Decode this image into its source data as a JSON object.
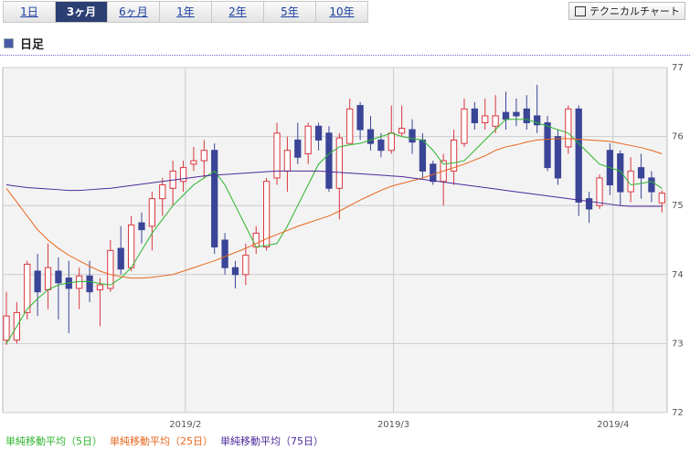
{
  "ui": {
    "tabs": [
      "1日",
      "3ヶ月",
      "6ヶ月",
      "1年",
      "2年",
      "5年",
      "10年"
    ],
    "selected_tab": 1,
    "button": "テクニカルチャート",
    "header": "日足"
  },
  "chart_data": {
    "type": "candlestick",
    "xlim": [
      -0.35,
      63.5
    ],
    "xticks": [
      {
        "value": 17.2,
        "label": "2019/2"
      },
      {
        "value": 37.2,
        "label": "2019/3"
      },
      {
        "value": 58.3,
        "label": "2019/4"
      }
    ],
    "ylim": [
      72,
      77
    ],
    "yticks": [
      72,
      73,
      74,
      75,
      76,
      77
    ],
    "grid": true,
    "up_color": "#d9363e",
    "down_color": "#3b4597",
    "open": [
      73.05,
      73.05,
      73.45,
      74.05,
      73.78,
      74.05,
      73.95,
      73.8,
      73.98,
      73.78,
      73.8,
      74.38,
      74.1,
      74.75,
      74.7,
      75.1,
      75.25,
      75.35,
      75.6,
      75.65,
      75.8,
      74.5,
      74.1,
      74.0,
      74.4,
      74.4,
      75.4,
      75.5,
      75.95,
      75.75,
      76.15,
      76.05,
      75.25,
      75.9,
      76.45,
      76.1,
      75.95,
      75.8,
      76.05,
      76.1,
      75.95,
      75.6,
      75.35,
      75.5,
      75.9,
      76.4,
      76.2,
      76.15,
      76.35,
      76.35,
      76.4,
      76.3,
      76.2,
      76.0,
      75.85,
      76.4,
      75.1,
      75.0,
      75.8,
      75.75,
      75.2,
      75.55,
      75.4,
      75.04
    ],
    "high": [
      73.75,
      73.6,
      74.2,
      74.3,
      74.45,
      74.25,
      74.2,
      74.1,
      74.2,
      73.95,
      74.5,
      74.7,
      74.85,
      74.9,
      75.2,
      75.4,
      75.65,
      75.65,
      75.85,
      75.95,
      75.9,
      74.6,
      74.2,
      74.45,
      74.7,
      75.4,
      76.2,
      76.0,
      76.2,
      76.2,
      76.2,
      76.15,
      76.05,
      76.55,
      76.5,
      76.3,
      76.05,
      76.45,
      76.45,
      76.25,
      76.05,
      75.65,
      75.75,
      76.1,
      76.55,
      76.5,
      76.55,
      76.6,
      76.65,
      76.55,
      76.6,
      76.75,
      76.3,
      76.1,
      76.45,
      76.45,
      75.2,
      75.45,
      75.9,
      75.8,
      75.7,
      75.75,
      75.5,
      75.22
    ],
    "low": [
      72.98,
      73.0,
      73.35,
      73.4,
      73.5,
      73.35,
      73.15,
      73.5,
      73.6,
      73.25,
      73.75,
      74.0,
      74.05,
      74.45,
      74.35,
      74.85,
      75.0,
      75.2,
      75.5,
      75.4,
      74.3,
      74.0,
      73.8,
      73.85,
      74.3,
      74.35,
      75.3,
      75.2,
      75.6,
      75.6,
      75.8,
      75.2,
      74.8,
      75.9,
      75.95,
      75.8,
      75.7,
      75.75,
      76.0,
      75.75,
      75.4,
      75.3,
      75.0,
      75.3,
      75.85,
      76.1,
      76.1,
      76.05,
      76.1,
      76.15,
      76.1,
      76.05,
      75.5,
      75.3,
      75.75,
      74.85,
      74.75,
      74.95,
      75.15,
      75.0,
      75.05,
      75.1,
      75.05,
      74.9
    ],
    "close": [
      73.4,
      73.45,
      74.15,
      73.75,
      74.1,
      73.88,
      73.8,
      73.98,
      73.75,
      73.85,
      74.35,
      74.08,
      74.72,
      74.65,
      75.1,
      75.3,
      75.5,
      75.55,
      75.65,
      75.8,
      74.4,
      74.1,
      74.0,
      74.28,
      74.6,
      75.35,
      76.05,
      75.8,
      75.7,
      76.15,
      75.95,
      75.25,
      75.98,
      76.4,
      76.1,
      75.9,
      75.8,
      76.05,
      76.12,
      75.92,
      75.5,
      75.35,
      75.65,
      75.95,
      76.4,
      76.2,
      76.3,
      76.3,
      76.25,
      76.3,
      76.2,
      76.17,
      75.55,
      75.4,
      76.4,
      75.05,
      74.95,
      75.4,
      75.3,
      75.2,
      75.5,
      75.4,
      75.2,
      75.18
    ],
    "series": [
      {
        "name": "単純移動平均（5日）",
        "color": "#2db52d",
        "values": [
          73.0,
          73.25,
          73.5,
          73.65,
          73.78,
          73.85,
          73.88,
          73.9,
          73.9,
          73.87,
          73.85,
          73.95,
          74.1,
          74.35,
          74.6,
          74.8,
          75.0,
          75.15,
          75.3,
          75.4,
          75.5,
          75.3,
          75.0,
          74.7,
          74.4,
          74.42,
          74.45,
          74.7,
          75.0,
          75.3,
          75.6,
          75.75,
          75.85,
          75.88,
          75.9,
          75.95,
          76.0,
          76.05,
          76.0,
          75.97,
          75.95,
          75.8,
          75.6,
          75.62,
          75.65,
          75.8,
          75.95,
          76.1,
          76.25,
          76.25,
          76.25,
          76.2,
          76.15,
          76.1,
          76.05,
          75.9,
          75.75,
          75.6,
          75.55,
          75.5,
          75.3,
          75.32,
          75.35,
          75.25
        ]
      },
      {
        "name": "単純移動平均（25日）",
        "color": "#e8661c",
        "values": [
          75.25,
          75.05,
          74.85,
          74.65,
          74.5,
          74.38,
          74.28,
          74.2,
          74.12,
          74.05,
          74.0,
          73.97,
          73.95,
          73.95,
          73.96,
          73.98,
          74.0,
          74.05,
          74.1,
          74.15,
          74.2,
          74.26,
          74.32,
          74.38,
          74.45,
          74.52,
          74.58,
          74.64,
          74.7,
          74.75,
          74.8,
          74.85,
          74.92,
          75.0,
          75.08,
          75.15,
          75.22,
          75.28,
          75.32,
          75.36,
          75.4,
          75.45,
          75.5,
          75.55,
          75.6,
          75.66,
          75.72,
          75.8,
          75.85,
          75.88,
          75.92,
          75.95,
          75.96,
          75.97,
          75.97,
          75.96,
          75.95,
          75.94,
          75.93,
          75.9,
          75.87,
          75.84,
          75.8,
          75.75
        ]
      },
      {
        "name": "単純移動平均（75日）",
        "color": "#4b2a9a",
        "values": [
          75.3,
          75.28,
          75.26,
          75.25,
          75.24,
          75.23,
          75.22,
          75.22,
          75.23,
          75.24,
          75.25,
          75.27,
          75.29,
          75.31,
          75.33,
          75.35,
          75.37,
          75.39,
          75.41,
          75.43,
          75.44,
          75.45,
          75.46,
          75.47,
          75.48,
          75.49,
          75.5,
          75.5,
          75.5,
          75.5,
          75.5,
          75.49,
          75.48,
          75.47,
          75.46,
          75.45,
          75.44,
          75.43,
          75.42,
          75.4,
          75.38,
          75.36,
          75.34,
          75.32,
          75.3,
          75.28,
          75.26,
          75.24,
          75.22,
          75.2,
          75.18,
          75.16,
          75.14,
          75.12,
          75.1,
          75.08,
          75.06,
          75.04,
          75.02,
          75.0,
          74.99,
          74.99,
          74.99,
          74.99
        ]
      }
    ]
  }
}
